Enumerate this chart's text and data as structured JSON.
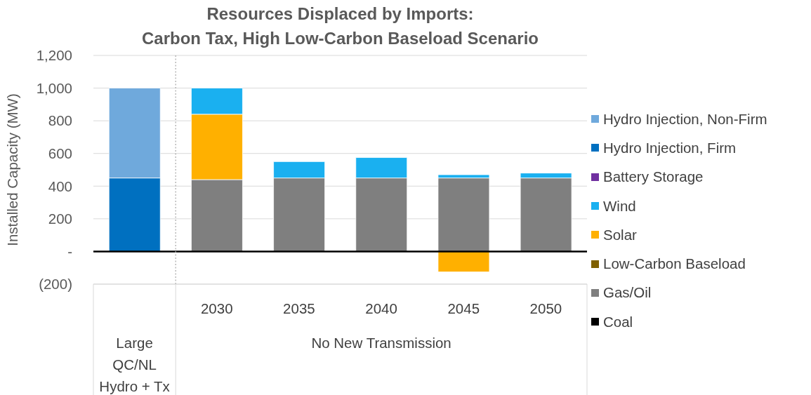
{
  "chart_data": {
    "type": "bar",
    "title": "Resources Displaced by Imports:\nCarbon Tax, High Low-Carbon Baseload Scenario",
    "ylabel": "Installed Capacity (MW)",
    "categories": [
      null,
      "2030",
      "2035",
      "2040",
      "2045",
      "2050"
    ],
    "annotations": [
      "Large QC/NL Hydro + Tx",
      "No New Transmission"
    ],
    "stacked": true,
    "series": [
      {
        "name": "Coal",
        "color": "#000000",
        "values": [
          0,
          0,
          0,
          0,
          0,
          0
        ]
      },
      {
        "name": "Gas/Oil",
        "color": "#7f7f7f",
        "values": [
          0,
          440,
          450,
          450,
          450,
          450
        ]
      },
      {
        "name": "Low-Carbon Baseload",
        "color": "#7f6000",
        "values": [
          0,
          0,
          0,
          0,
          0,
          0
        ]
      },
      {
        "name": "Solar",
        "color": "#ffb000",
        "values": [
          0,
          400,
          0,
          0,
          -125,
          0
        ]
      },
      {
        "name": "Wind",
        "color": "#1ab0f0",
        "values": [
          0,
          160,
          100,
          125,
          20,
          30
        ]
      },
      {
        "name": "Battery Storage",
        "color": "#7030a0",
        "values": [
          0,
          0,
          0,
          0,
          0,
          0
        ]
      },
      {
        "name": "Hydro Injection, Firm",
        "color": "#0070c0",
        "values": [
          450,
          0,
          0,
          0,
          0,
          0
        ]
      },
      {
        "name": "Hydro Injection, Non-Firm",
        "color": "#6fa9dc",
        "values": [
          550,
          0,
          0,
          0,
          0,
          0
        ]
      }
    ],
    "ylim": [
      -200,
      1200
    ],
    "yticks": [
      {
        "value": -200,
        "label": "(200)"
      },
      {
        "value": 0,
        "label": "-"
      },
      200,
      400,
      600,
      800,
      {
        "value": 1000,
        "label": "1,000"
      },
      {
        "value": 1200,
        "label": "1,200"
      }
    ],
    "grid": "y",
    "legend": "right",
    "ref_lines": [
      {
        "axis": "y",
        "value": 0,
        "color": "#000000"
      },
      {
        "axis": "x",
        "value": "2030",
        "color": "#a6a6a6",
        "line_style": "dotted"
      }
    ]
  }
}
